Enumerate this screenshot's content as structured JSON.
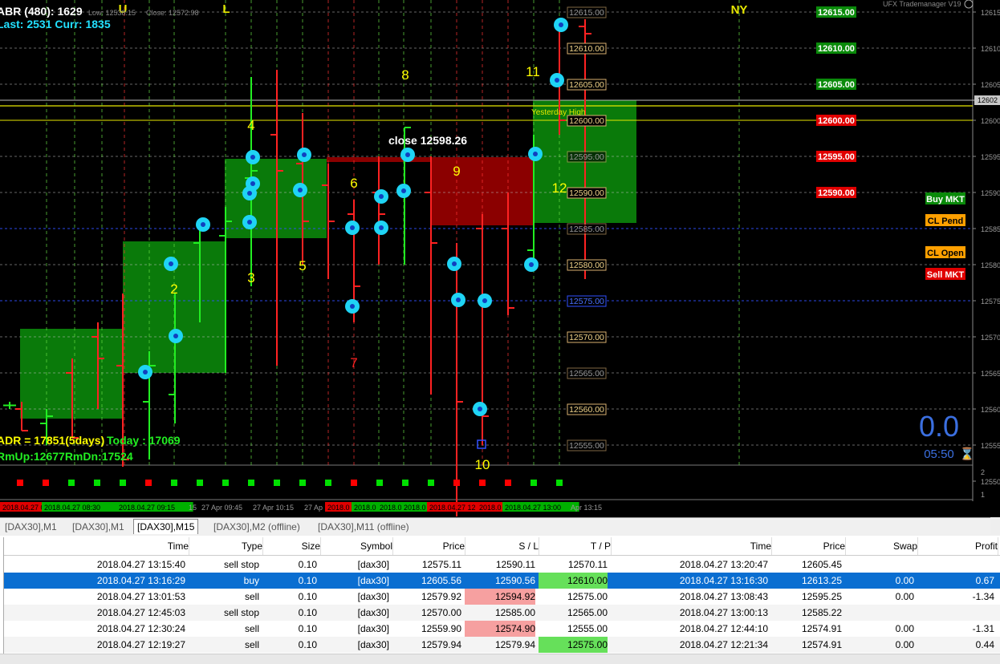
{
  "window": {
    "title_fragment": "[DAX30],M15",
    "top_left_fragment": "[DAX30],M15"
  },
  "overlay": {
    "abr": "ABR (480): 1629",
    "last": "Last: 2531 Curr: 1835",
    "low_info": "Low: 12538.15",
    "close_info": "Close: 12572.98",
    "adr": "ADR = 17851(5days)",
    "today": "Today : 17069",
    "rm": "RmUp:12677RmDn:17524",
    "trademanager": "UFX Trademanager V19",
    "close_label": "close 12598.26",
    "yesterday_high": "Yesterday High",
    "big_value": "0.0",
    "timer": "05:50",
    "session_u": "U",
    "session_l": "L",
    "session_ny": "NY"
  },
  "buttons": {
    "buy_mkt": "Buy MKT",
    "cl_pend": "CL Pend",
    "cl_open": "CL Open",
    "sell_mkt": "Sell MKT"
  },
  "colors": {
    "bull": "#0a7a0a",
    "bear": "#8b0000",
    "accent_green": "#00dd00",
    "accent_red": "#ff0000",
    "marker": "#1fd4f5",
    "level_yellow": "#e6e600"
  },
  "price_axis": [
    "12615",
    "12610",
    "12605",
    "12600",
    "12595",
    "12590",
    "12585",
    "12580",
    "12575",
    "12570",
    "12565",
    "12560",
    "12555",
    "12550"
  ],
  "price_labels": [
    {
      "t": "12615.00",
      "c": "g"
    },
    {
      "t": "12610.00",
      "c": "g"
    },
    {
      "t": "12605.00",
      "c": "g"
    },
    {
      "t": "12600.00",
      "c": "r"
    },
    {
      "t": "12595.00",
      "c": "r"
    },
    {
      "t": "12590.00",
      "c": "r"
    }
  ],
  "level_boxes": [
    "12615.00",
    "12610.00",
    "12605.00",
    "12600.00",
    "12595.00",
    "12590.00",
    "12585.00",
    "12580.00",
    "12575.00",
    "12570.00",
    "12565.00",
    "12560.00",
    "12555.00"
  ],
  "current_price": "12602",
  "wave_labels": [
    "2",
    "3",
    "4",
    "5",
    "6",
    "7",
    "8",
    "9",
    "10",
    "11",
    "12"
  ],
  "time_labels": [
    {
      "t": "2018.04.27 08",
      "s": "r"
    },
    {
      "t": "2018.04.27 08:30",
      "s": "g"
    },
    {
      "t": "2018.04.27 09:15",
      "s": "g"
    },
    {
      "t": "15",
      "s": "n"
    },
    {
      "t": "27 Apr 09:45",
      "s": "n"
    },
    {
      "t": "27 Apr 10:15",
      "s": "n"
    },
    {
      "t": "27 Ap",
      "s": "n"
    },
    {
      "t": "2018.0",
      "s": "r"
    },
    {
      "t": "2018.0",
      "s": "g"
    },
    {
      "t": "2018.0",
      "s": "g"
    },
    {
      "t": "2018.0",
      "s": "g"
    },
    {
      "t": "2018.04.27 12",
      "s": "r"
    },
    {
      "t": "2018.0",
      "s": "r"
    },
    {
      "t": "2018.04.27 13:00",
      "s": "g"
    },
    {
      "t": "Apr 13:15",
      "s": "n"
    }
  ],
  "sub_window_axis": [
    "2",
    "1"
  ],
  "tabs": [
    "[DAX30],M1",
    "[DAX30],M1",
    "[DAX30],M15",
    "[DAX30],M2 (offline)",
    "[DAX30],M11 (offline)"
  ],
  "table": {
    "headers": [
      "Time",
      "Type",
      "Size",
      "Symbol",
      "Price",
      "S / L",
      "T / P",
      "Time",
      "Price",
      "Swap",
      "Profit"
    ],
    "rows": [
      {
        "time": "2018.04.27 13:15:40",
        "type": "sell stop",
        "size": "0.10",
        "symbol": "[dax30]",
        "price": "12575.11",
        "sl": "12590.11",
        "tp": "12570.11",
        "time2": "2018.04.27 13:20:47",
        "price2": "12605.45",
        "swap": "",
        "profit": ""
      },
      {
        "time": "2018.04.27 13:16:29",
        "type": "buy",
        "size": "0.10",
        "symbol": "[dax30]",
        "price": "12605.56",
        "sl": "12590.56",
        "tp": "12610.00",
        "time2": "2018.04.27 13:16:30",
        "price2": "12613.25",
        "swap": "0.00",
        "profit": "0.67"
      },
      {
        "time": "2018.04.27 13:01:53",
        "type": "sell",
        "size": "0.10",
        "symbol": "[dax30]",
        "price": "12579.92",
        "sl": "12594.92",
        "tp": "12575.00",
        "time2": "2018.04.27 13:08:43",
        "price2": "12595.25",
        "swap": "0.00",
        "profit": "-1.34"
      },
      {
        "time": "2018.04.27 12:45:03",
        "type": "sell stop",
        "size": "0.10",
        "symbol": "[dax30]",
        "price": "12570.00",
        "sl": "12585.00",
        "tp": "12565.00",
        "time2": "2018.04.27 13:00:13",
        "price2": "12585.22",
        "swap": "",
        "profit": ""
      },
      {
        "time": "2018.04.27 12:30:24",
        "type": "sell",
        "size": "0.10",
        "symbol": "[dax30]",
        "price": "12559.90",
        "sl": "12574.90",
        "tp": "12555.00",
        "time2": "2018.04.27 12:44:10",
        "price2": "12574.91",
        "swap": "0.00",
        "profit": "-1.31"
      },
      {
        "time": "2018.04.27 12:19:27",
        "type": "sell",
        "size": "0.10",
        "symbol": "[dax30]",
        "price": "12579.94",
        "sl": "12579.94",
        "tp": "12575.00",
        "time2": "2018.04.27 12:21:34",
        "price2": "12574.91",
        "swap": "0.00",
        "profit": "0.44"
      }
    ]
  }
}
